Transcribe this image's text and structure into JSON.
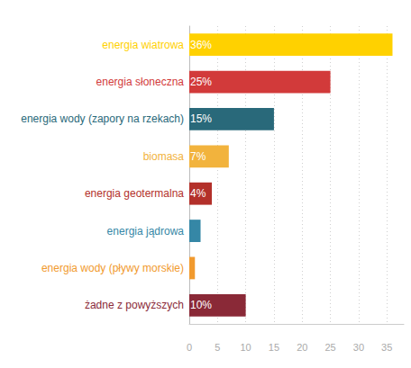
{
  "chart_data": {
    "type": "bar",
    "orientation": "horizontal",
    "categories": [
      "energia wiatrowa",
      "energia słoneczna",
      "energia wody (zapory na rzekach)",
      "biomasa",
      "energia geotermalna",
      "energia jądrowa",
      "energia wody (pływy morskie)",
      "żadne z powyższych"
    ],
    "values": [
      36,
      25,
      15,
      7,
      4,
      2,
      1,
      10
    ],
    "value_labels": [
      "36%",
      "25%",
      "15%",
      "7%",
      "4%",
      null,
      null,
      "10%"
    ],
    "colors": [
      "#ffd100",
      "#d23a3a",
      "#29697a",
      "#f2b33d",
      "#b3302a",
      "#3587a6",
      "#f19a2e",
      "#8a2937"
    ],
    "xlim": [
      0,
      38
    ],
    "xticks": [
      0,
      5,
      10,
      15,
      20,
      25,
      30,
      35
    ],
    "grid": true,
    "data_labels": true
  }
}
